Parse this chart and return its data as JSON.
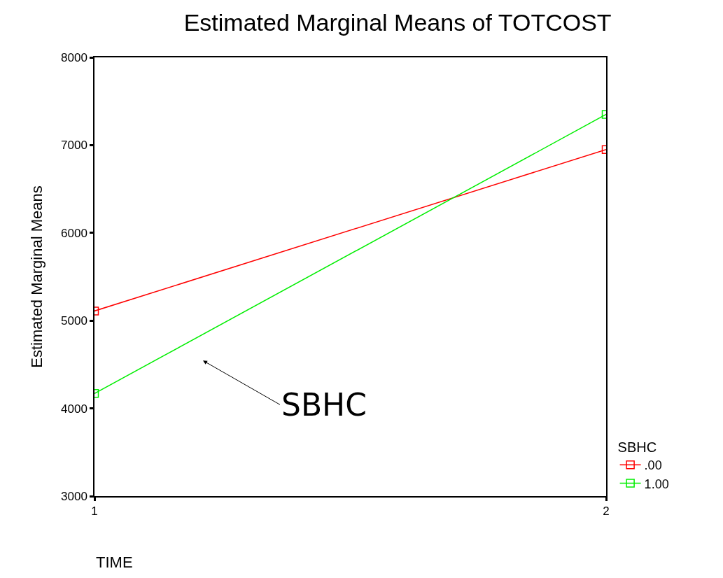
{
  "chart_data": {
    "type": "line",
    "title": "Estimated Marginal Means of TOTCOST",
    "xlabel": "TIME",
    "ylabel": "Estimated Marginal Means",
    "legend_title": "SBHC",
    "x": [
      1,
      2
    ],
    "series": [
      {
        "name": ".00",
        "color": "#ff0000",
        "values": [
          5110,
          6950
        ]
      },
      {
        "name": "1.00",
        "color": "#00ee00",
        "values": [
          4170,
          7350
        ]
      }
    ],
    "xlim": [
      1,
      2
    ],
    "xticks": [
      1,
      2
    ],
    "ylim": [
      3000,
      8000
    ],
    "yticks": [
      3000,
      4000,
      5000,
      6000,
      7000,
      8000
    ],
    "annotations": [
      "SBHC"
    ],
    "grid": false,
    "legend": "bottom right",
    "marker": "square",
    "line_style": "solid"
  }
}
